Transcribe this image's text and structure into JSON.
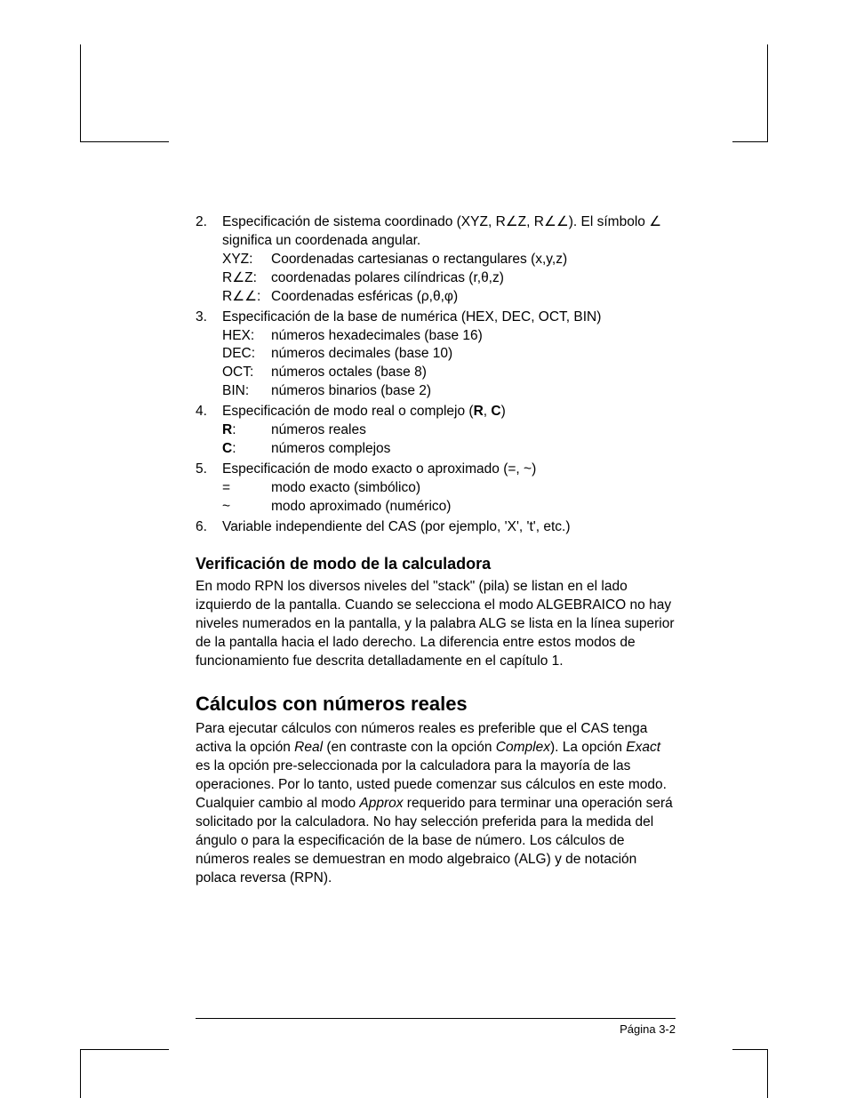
{
  "items": {
    "i2": {
      "num": "2.",
      "lead_a": "Especificación de sistema coordinado (XYZ, R",
      "ang": "∠",
      "lead_b": "Z, R",
      "lead_c": ").  El símbolo ",
      "lead_d": " significa un coordenada angular.",
      "xyz_k": "XYZ:",
      "xyz_v": "Coordenadas cartesianas o rectangulares (x,y,z)",
      "rz_k_a": "R",
      "rz_k_b": "Z:",
      "rz_v": "coordenadas polares cilíndricas (r,θ,z)",
      "raa_k_a": "R",
      "raa_k_b": ":",
      "raa_v": "Coordenadas esféricas (ρ,θ,φ)"
    },
    "i3": {
      "num": "3.",
      "lead": "Especificación de la base de numérica (HEX, DEC, OCT, BIN)",
      "hex_k": "HEX:",
      "hex_v": "números hexadecimales (base 16)",
      "dec_k": "DEC:",
      "dec_v": "números decimales (base 10)",
      "oct_k": "OCT:",
      "oct_v": "números octales (base 8)",
      "bin_k": "BIN:",
      "bin_v": "números binarios (base 2)"
    },
    "i4": {
      "num": "4.",
      "lead_a": "Especificación de modo real o complejo (",
      "R": "R",
      "comma": ", ",
      "C": "C",
      "lead_b": ")",
      "r_k": "R",
      "r_colon": ":",
      "r_v": "números reales",
      "c_k": "C",
      "c_colon": ":",
      "c_v": "números complejos"
    },
    "i5": {
      "num": "5.",
      "lead": "Especificación de modo exacto o aproximado (=, ~)",
      "eq_k": "=",
      "eq_v": "modo exacto (simbólico)",
      "ap_k": "~",
      "ap_v": "modo aproximado (numérico)"
    },
    "i6": {
      "num": "6.",
      "lead": "Variable independiente del CAS (por ejemplo, 'X', 't', etc.)"
    }
  },
  "verif": {
    "h": "Verificación de modo de la calculadora",
    "p": "En modo RPN los diversos niveles del \"stack\" (pila) se listan en el lado izquierdo de la pantalla. Cuando se selecciona el modo ALGEBRAICO no hay niveles numerados en la pantalla, y la palabra ALG se lista en la línea superior de la pantalla hacia el lado derecho. La diferencia entre estos modos de funcionamiento fue descrita detalladamente en el capítulo 1."
  },
  "calc": {
    "h": "Cálculos con números reales",
    "p1a": "Para ejecutar cálculos con números reales es preferible que el CAS tenga activa la opción ",
    "real": "Real",
    "p1b": " (en contraste con la opción ",
    "complex": "Complex",
    "p1c": ").  La opción ",
    "exact": "Exact",
    "p2a": " es la opción pre-seleccionada por la calculadora para la mayoría de las operaciones.  Por lo tanto, usted puede comenzar sus cálculos en este modo.  Cualquier cambio al modo ",
    "approx": "Approx",
    "p2b": " requerido para terminar una operación será solicitado por la calculadora. No hay selección preferida para la medida del ángulo o para la especificación de la base de número. Los cálculos de números reales se demuestran en modo algebraico (ALG) y de notación polaca reversa (RPN)."
  },
  "footer": "Página 3-2"
}
